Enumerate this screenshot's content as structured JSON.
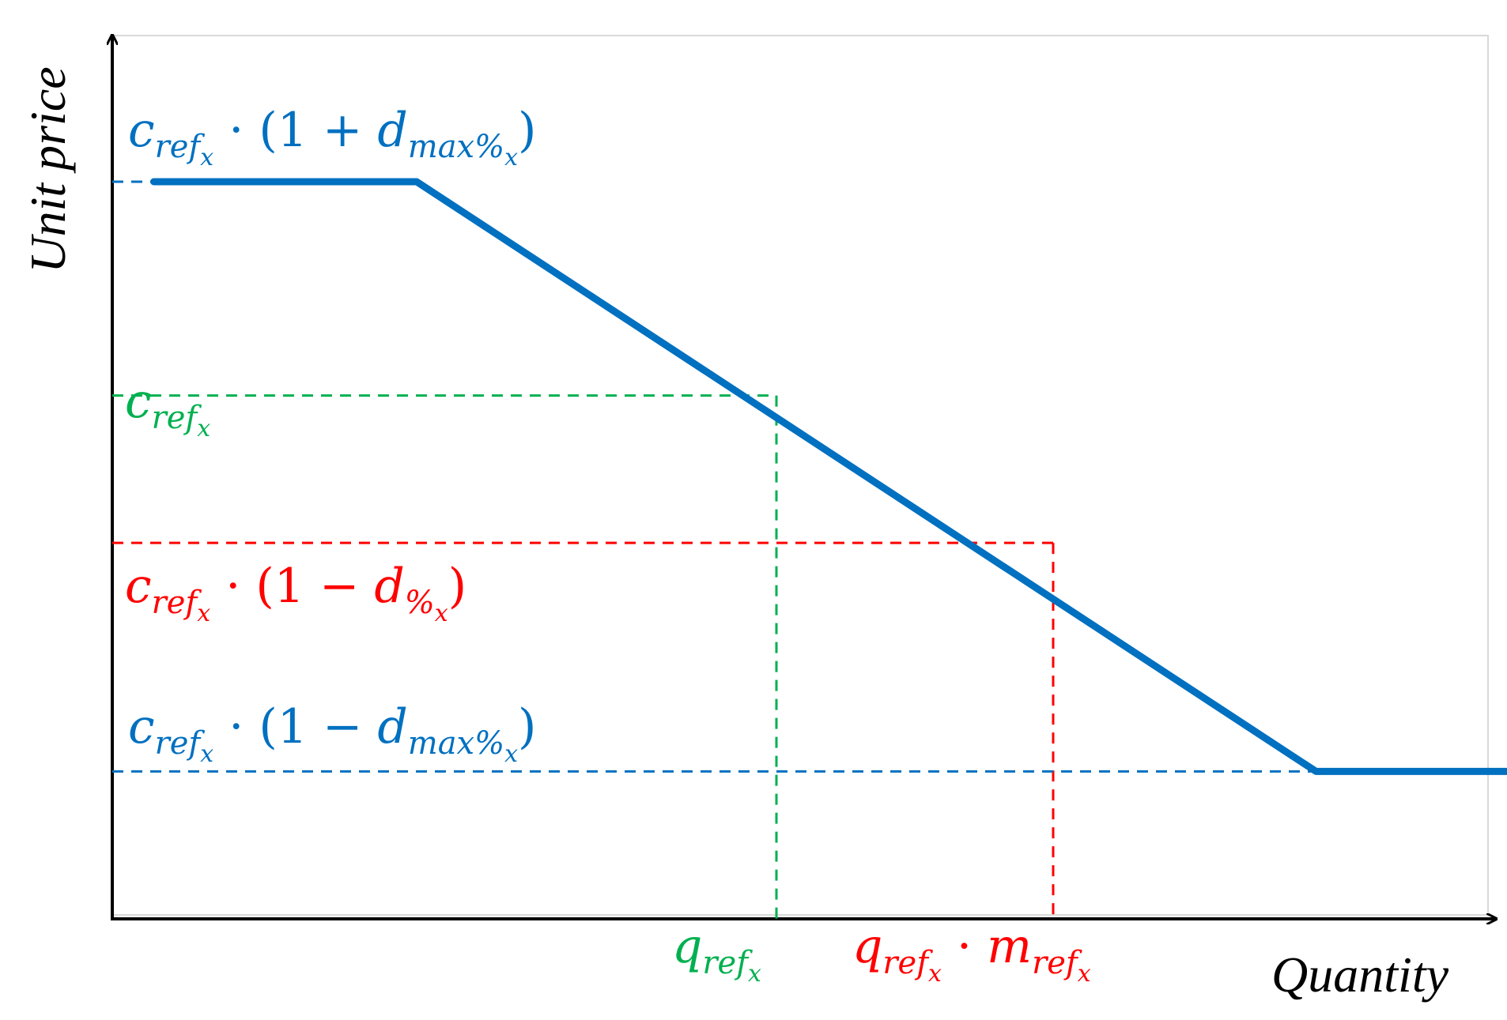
{
  "colors": {
    "curve": "#0070C0",
    "ref": "#00B050",
    "target": "#FF0000",
    "axis": "#000000",
    "frame": "#D9D9D9"
  },
  "chart_data": {
    "type": "line",
    "xlabel": "Quantity",
    "ylabel": "Unit price",
    "grid": false,
    "series": [
      {
        "x": [
          0.03,
          0.22,
          0.87,
          1.05
        ],
        "y": [
          1.0,
          1.0,
          0.2,
          0.2
        ]
      }
    ],
    "guides": {
      "c_max": {
        "y": 1.0,
        "x_end": 0.03
      },
      "c_ref": {
        "y": 0.71,
        "x": 0.48
      },
      "c_disc": {
        "y": 0.51,
        "x": 0.68
      },
      "c_min": {
        "y": 0.2,
        "x_end": 0.87
      }
    },
    "annotations": {
      "c_max": {
        "base": "c",
        "sub": "ref",
        "subsub": "x",
        "rest": " · (1 + ",
        "d": "d",
        "dsub": "max%",
        "dsubsub": "x",
        "close": ")"
      },
      "c_ref": {
        "base": "c",
        "sub": "ref",
        "subsub": "x"
      },
      "c_disc": {
        "base": "c",
        "sub": "ref",
        "subsub": "x",
        "rest": " · (1 − ",
        "d": "d",
        "dsub": "%",
        "dsubsub": "x",
        "close": ")"
      },
      "c_min": {
        "base": "c",
        "sub": "ref",
        "subsub": "x",
        "rest": " · (1 − ",
        "d": "d",
        "dsub": "max%",
        "dsubsub": "x",
        "close": ")"
      },
      "q_ref": {
        "base": "q",
        "sub": "ref",
        "subsub": "x"
      },
      "q_target": {
        "base": "q",
        "sub": "ref",
        "subsub": "x",
        "rest": " · ",
        "m": "m",
        "msub": "ref",
        "msubsub": "x"
      }
    }
  }
}
